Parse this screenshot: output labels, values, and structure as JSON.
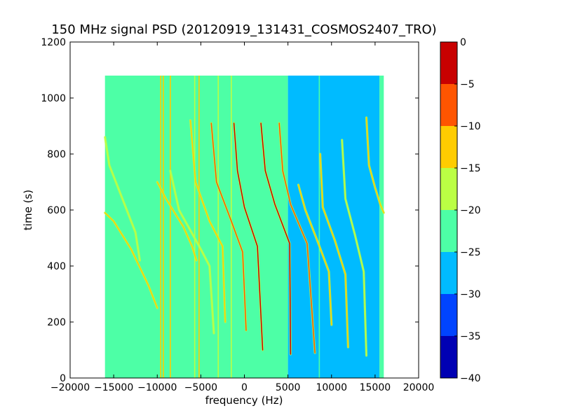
{
  "chart_data": {
    "type": "heatmap",
    "title": "150 MHz signal PSD (20120919_131431_COSMOS2407_TRO)",
    "xlabel": "frequency (Hz)",
    "ylabel": "time (s)",
    "xlim": [
      -20000,
      20000
    ],
    "ylim": [
      0,
      1200
    ],
    "x_ticks": [
      -20000,
      -15000,
      -10000,
      -5000,
      0,
      5000,
      10000,
      15000,
      20000
    ],
    "x_tick_labels": [
      "−20000",
      "−15000",
      "−10000",
      "−5000",
      "0",
      "5000",
      "10000",
      "15000",
      "20000"
    ],
    "y_ticks": [
      0,
      200,
      400,
      600,
      800,
      1000,
      1200
    ],
    "y_tick_labels": [
      "0",
      "200",
      "400",
      "600",
      "800",
      "1000",
      "1200"
    ],
    "data_extent": {
      "x": [
        -16000,
        16000
      ],
      "y": [
        0,
        1080
      ]
    },
    "colorbar": {
      "limits": [
        -40,
        0
      ],
      "levels": [
        -40,
        -35,
        -30,
        -25,
        -20,
        -15,
        -10,
        -5,
        0
      ],
      "tick_labels": [
        "−40",
        "−35",
        "−30",
        "−25",
        "−20",
        "−15",
        "−10",
        "−5",
        "0"
      ],
      "colors": [
        "#0000b3",
        "#0044ff",
        "#00bbff",
        "#4dffa6",
        "#bbff44",
        "#ffcc00",
        "#ff5500",
        "#c80000"
      ]
    },
    "background_regions": [
      {
        "x": [
          -16000,
          5000
        ],
        "level": -22,
        "color": "#4dffa6"
      },
      {
        "x": [
          5000,
          15500
        ],
        "level": -28,
        "color": "#00bbff"
      },
      {
        "x": [
          15500,
          16000
        ],
        "level": -22,
        "color": "#4dffa6"
      }
    ],
    "vertical_lines": [
      {
        "x": -9600,
        "level": -15
      },
      {
        "x": -9300,
        "level": -13
      },
      {
        "x": -8500,
        "level": -15
      },
      {
        "x": -5700,
        "level": -18
      },
      {
        "x": -5200,
        "level": -15
      },
      {
        "x": -3000,
        "level": -18
      },
      {
        "x": -1500,
        "level": -17
      },
      {
        "x": 8600,
        "level": -22
      }
    ],
    "tracks": [
      {
        "x": [
          -16000,
          -15000,
          -13000,
          -11000,
          -10000
        ],
        "y": [
          590,
          560,
          460,
          330,
          250
        ],
        "level": -15
      },
      {
        "x": [
          -16000,
          -15500,
          -13500,
          -12500,
          -12000
        ],
        "y": [
          860,
          760,
          600,
          520,
          420
        ],
        "level": -17
      },
      {
        "x": [
          -10000,
          -9000,
          -7000,
          -6000,
          -5500
        ],
        "y": [
          700,
          640,
          540,
          470,
          420
        ],
        "level": -15
      },
      {
        "x": [
          -6200,
          -5600,
          -4000,
          -2500,
          -2200
        ],
        "y": [
          920,
          700,
          560,
          470,
          200
        ],
        "level": -15
      },
      {
        "x": [
          -8500,
          -7500,
          -5000,
          -4000,
          -3500
        ],
        "y": [
          740,
          600,
          460,
          400,
          160
        ],
        "level": -17
      },
      {
        "x": [
          -3800,
          -3200,
          -1500,
          -200,
          200
        ],
        "y": [
          910,
          700,
          560,
          450,
          170
        ],
        "level": -8
      },
      {
        "x": [
          -1200,
          -800,
          0,
          1500,
          2100
        ],
        "y": [
          910,
          740,
          610,
          470,
          100
        ],
        "level": -5
      },
      {
        "x": [
          1900,
          2400,
          3500,
          5200,
          5300
        ],
        "y": [
          910,
          740,
          620,
          480,
          85
        ],
        "level": -5
      },
      {
        "x": [
          4000,
          4400,
          5300,
          7200,
          8100
        ],
        "y": [
          910,
          740,
          620,
          480,
          90
        ],
        "level": -6
      },
      {
        "x": [
          6200,
          7000,
          8500,
          9700,
          10000
        ],
        "y": [
          690,
          600,
          480,
          380,
          190
        ],
        "level": -12
      },
      {
        "x": [
          8700,
          9000,
          10400,
          11600,
          11900
        ],
        "y": [
          800,
          610,
          490,
          370,
          110
        ],
        "level": -15
      },
      {
        "x": [
          11200,
          11600,
          12700,
          13700,
          14000
        ],
        "y": [
          850,
          640,
          510,
          380,
          80
        ],
        "level": -17
      },
      {
        "x": [
          14000,
          14300,
          15000,
          15600,
          16000
        ],
        "y": [
          930,
          760,
          680,
          620,
          590
        ],
        "level": -15
      }
    ]
  }
}
